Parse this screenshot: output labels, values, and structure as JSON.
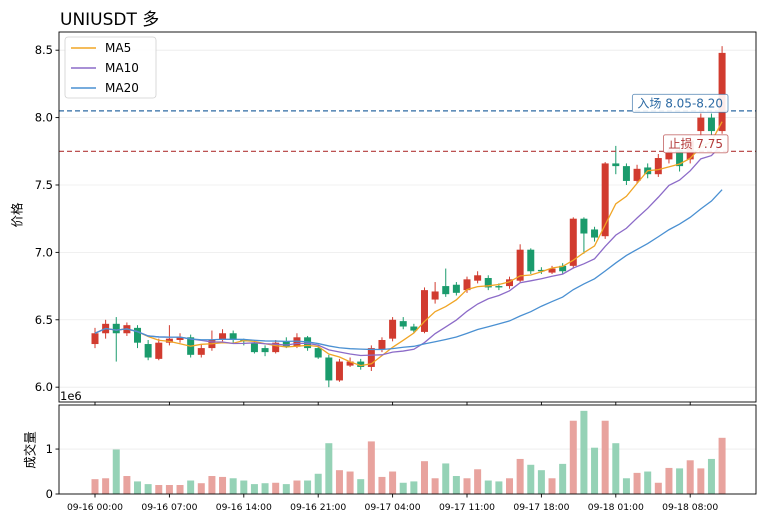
{
  "chart_data": {
    "type": "candlestick",
    "title": "UNIUSDT 多",
    "ylabel": "价格",
    "volume_ylabel": "成交量",
    "volume_offset_label": "1e6",
    "x": [
      "09-16 00:00",
      "09-16 01:00",
      "09-16 02:00",
      "09-16 03:00",
      "09-16 04:00",
      "09-16 05:00",
      "09-16 06:00",
      "09-16 07:00",
      "09-16 08:00",
      "09-16 09:00",
      "09-16 10:00",
      "09-16 11:00",
      "09-16 12:00",
      "09-16 13:00",
      "09-16 14:00",
      "09-16 15:00",
      "09-16 16:00",
      "09-16 17:00",
      "09-16 18:00",
      "09-16 19:00",
      "09-16 20:00",
      "09-16 21:00",
      "09-16 22:00",
      "09-16 23:00",
      "09-17 00:00",
      "09-17 01:00",
      "09-17 02:00",
      "09-17 03:00",
      "09-17 04:00",
      "09-17 05:00",
      "09-17 06:00",
      "09-17 07:00",
      "09-17 08:00",
      "09-17 09:00",
      "09-17 10:00",
      "09-17 11:00",
      "09-17 12:00",
      "09-17 13:00",
      "09-17 14:00",
      "09-17 15:00",
      "09-17 16:00",
      "09-17 17:00",
      "09-17 18:00",
      "09-17 19:00",
      "09-17 20:00",
      "09-17 21:00",
      "09-17 22:00",
      "09-17 23:00",
      "09-18 00:00",
      "09-18 01:00",
      "09-18 02:00",
      "09-18 03:00",
      "09-18 04:00",
      "09-18 05:00",
      "09-18 06:00",
      "09-18 07:00",
      "09-18 08:00",
      "09-18 09:00",
      "09-18 10:00",
      "09-18 11:00"
    ],
    "open": [
      6.32,
      6.4,
      6.47,
      6.4,
      6.44,
      6.32,
      6.21,
      6.33,
      6.35,
      6.37,
      6.24,
      6.29,
      6.35,
      6.4,
      6.35,
      6.33,
      6.29,
      6.26,
      6.34,
      6.3,
      6.37,
      6.29,
      6.22,
      6.05,
      6.16,
      6.19,
      6.15,
      6.28,
      6.36,
      6.49,
      6.45,
      6.41,
      6.65,
      6.75,
      6.76,
      6.72,
      6.79,
      6.81,
      6.75,
      6.75,
      6.79,
      7.02,
      6.87,
      6.85,
      6.9,
      6.9,
      7.25,
      7.17,
      7.12,
      7.66,
      7.64,
      7.53,
      7.63,
      7.58,
      7.69,
      7.76,
      7.69,
      7.9,
      8.0,
      7.9
    ],
    "high": [
      6.44,
      6.5,
      6.52,
      6.48,
      6.46,
      6.35,
      6.36,
      6.46,
      6.4,
      6.39,
      6.32,
      6.42,
      6.43,
      6.42,
      6.36,
      6.35,
      6.31,
      6.35,
      6.37,
      6.4,
      6.38,
      6.31,
      6.24,
      6.21,
      6.22,
      6.21,
      6.31,
      6.37,
      6.52,
      6.52,
      6.47,
      6.74,
      6.78,
      6.88,
      6.78,
      6.82,
      6.86,
      6.83,
      6.77,
      6.82,
      7.06,
      7.03,
      6.89,
      6.9,
      6.92,
      7.26,
      7.26,
      7.19,
      7.67,
      7.79,
      7.66,
      7.65,
      7.66,
      7.73,
      7.78,
      7.8,
      7.86,
      8.03,
      8.03,
      8.53
    ],
    "low": [
      6.29,
      6.36,
      6.19,
      6.38,
      6.29,
      6.2,
      6.2,
      6.31,
      6.33,
      6.22,
      6.22,
      6.27,
      6.34,
      6.33,
      6.31,
      6.25,
      6.23,
      6.25,
      6.29,
      6.29,
      6.27,
      6.21,
      6.0,
      6.04,
      6.15,
      6.13,
      6.12,
      6.26,
      6.34,
      6.43,
      6.4,
      6.4,
      6.62,
      6.67,
      6.68,
      6.7,
      6.77,
      6.72,
      6.72,
      6.73,
      6.78,
      6.84,
      6.84,
      6.84,
      6.84,
      6.88,
      6.99,
      7.08,
      7.1,
      7.58,
      7.5,
      7.51,
      7.55,
      7.56,
      7.66,
      7.6,
      7.66,
      7.86,
      7.87,
      7.88
    ],
    "close": [
      6.4,
      6.47,
      6.4,
      6.46,
      6.33,
      6.22,
      6.33,
      6.36,
      6.37,
      6.24,
      6.29,
      6.35,
      6.4,
      6.35,
      6.34,
      6.26,
      6.26,
      6.33,
      6.3,
      6.37,
      6.29,
      6.22,
      6.05,
      6.19,
      6.19,
      6.15,
      6.29,
      6.35,
      6.5,
      6.45,
      6.42,
      6.72,
      6.71,
      6.69,
      6.7,
      6.8,
      6.83,
      6.74,
      6.74,
      6.8,
      7.02,
      6.86,
      6.86,
      6.88,
      6.86,
      7.25,
      7.14,
      7.11,
      7.66,
      7.64,
      7.53,
      7.62,
      7.58,
      7.7,
      7.74,
      7.64,
      7.83,
      8.0,
      7.9,
      8.48
    ],
    "volume": [
      330000,
      350000,
      990000,
      400000,
      280000,
      220000,
      200000,
      200000,
      200000,
      300000,
      240000,
      400000,
      380000,
      350000,
      300000,
      220000,
      240000,
      250000,
      220000,
      300000,
      300000,
      450000,
      1130000,
      530000,
      500000,
      330000,
      1170000,
      380000,
      500000,
      250000,
      280000,
      730000,
      350000,
      680000,
      400000,
      350000,
      550000,
      300000,
      280000,
      350000,
      780000,
      650000,
      530000,
      350000,
      670000,
      1630000,
      1850000,
      1030000,
      1630000,
      1130000,
      350000,
      470000,
      500000,
      250000,
      580000,
      570000,
      750000,
      570000,
      780000,
      1250000
    ],
    "ylim": [
      5.89,
      8.635
    ],
    "yticks": [
      6.0,
      6.5,
      7.0,
      7.5,
      8.0,
      8.5
    ],
    "ytick_labels": [
      "6.0",
      "6.5",
      "7.0",
      "7.5",
      "8.0",
      "8.5"
    ],
    "volume_ylim": [
      0,
      1980000
    ],
    "volume_yticks": [
      0,
      1000000
    ],
    "volume_ytick_labels": [
      "0",
      "1"
    ],
    "xticks": [
      "09-16 00:00",
      "09-16 07:00",
      "09-16 14:00",
      "09-16 21:00",
      "09-17 04:00",
      "09-17 11:00",
      "09-17 18:00",
      "09-18 01:00",
      "09-18 08:00"
    ],
    "moving_averages": [
      {
        "name": "MA5",
        "period": 5,
        "color": "#f0a525"
      },
      {
        "name": "MA10",
        "period": 10,
        "color": "#8c6bc8"
      },
      {
        "name": "MA20",
        "period": 20,
        "color": "#4a90d2"
      }
    ],
    "levels": [
      {
        "label": "入场 8.05-8.20",
        "value": 8.05,
        "color": "#2d6aa3"
      },
      {
        "label": "止损 7.75",
        "value": 7.75,
        "color": "#b23a3a"
      }
    ],
    "legend_position": "top-left",
    "grid": true,
    "colors": {
      "up": "#d13b2f",
      "down": "#1a9b6c",
      "up_volume": "#e8a39e",
      "down_volume": "#95d2b6"
    }
  }
}
